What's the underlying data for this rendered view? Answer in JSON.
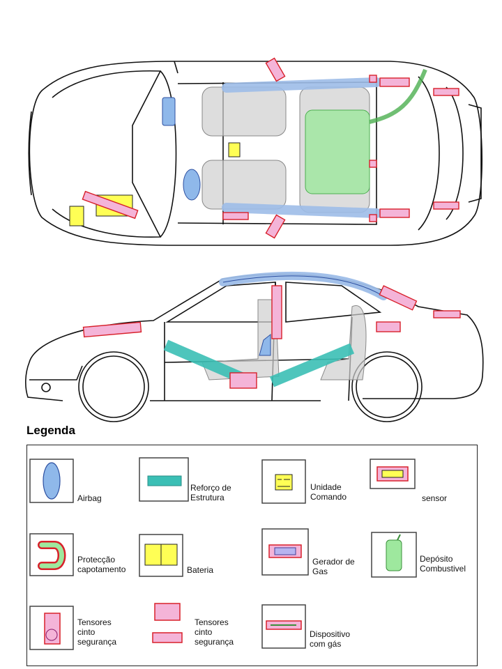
{
  "legend": {
    "title": "Legenda",
    "items": [
      {
        "line1": "Airbag",
        "line2": "",
        "line3": ""
      },
      {
        "line1": "Reforço de",
        "line2": "Estrutura",
        "line3": ""
      },
      {
        "line1": "Unidade",
        "line2": "Comando",
        "line3": ""
      },
      {
        "line1": "sensor",
        "line2": "",
        "line3": ""
      },
      {
        "line1": "Protecção",
        "line2": "capotamento",
        "line3": ""
      },
      {
        "line1": "Bateria",
        "line2": "",
        "line3": ""
      },
      {
        "line1": "Gerador de",
        "line2": "Gas",
        "line3": ""
      },
      {
        "line1": "Depósito",
        "line2": "Combustivel",
        "line3": ""
      },
      {
        "line1": "Tensores",
        "line2": "cinto",
        "line3": "segurança"
      },
      {
        "line1": "Tensores",
        "line2": "cinto",
        "line3": "segurança"
      },
      {
        "line1": "Dispositivo",
        "line2": "com gás",
        "line3": ""
      }
    ]
  },
  "colors": {
    "airbag": "#8fb8ea",
    "reinforcement": "#3bbfb5",
    "control_unit": "#ffff55",
    "red_outline": "#d8202a",
    "pink_fill": "#f4b4d8",
    "fuel_tank": "#9ee89e",
    "gas_generator": "#b7b4f0",
    "roof_rail": "#9dbde8",
    "seat": "#cfcfcf"
  }
}
